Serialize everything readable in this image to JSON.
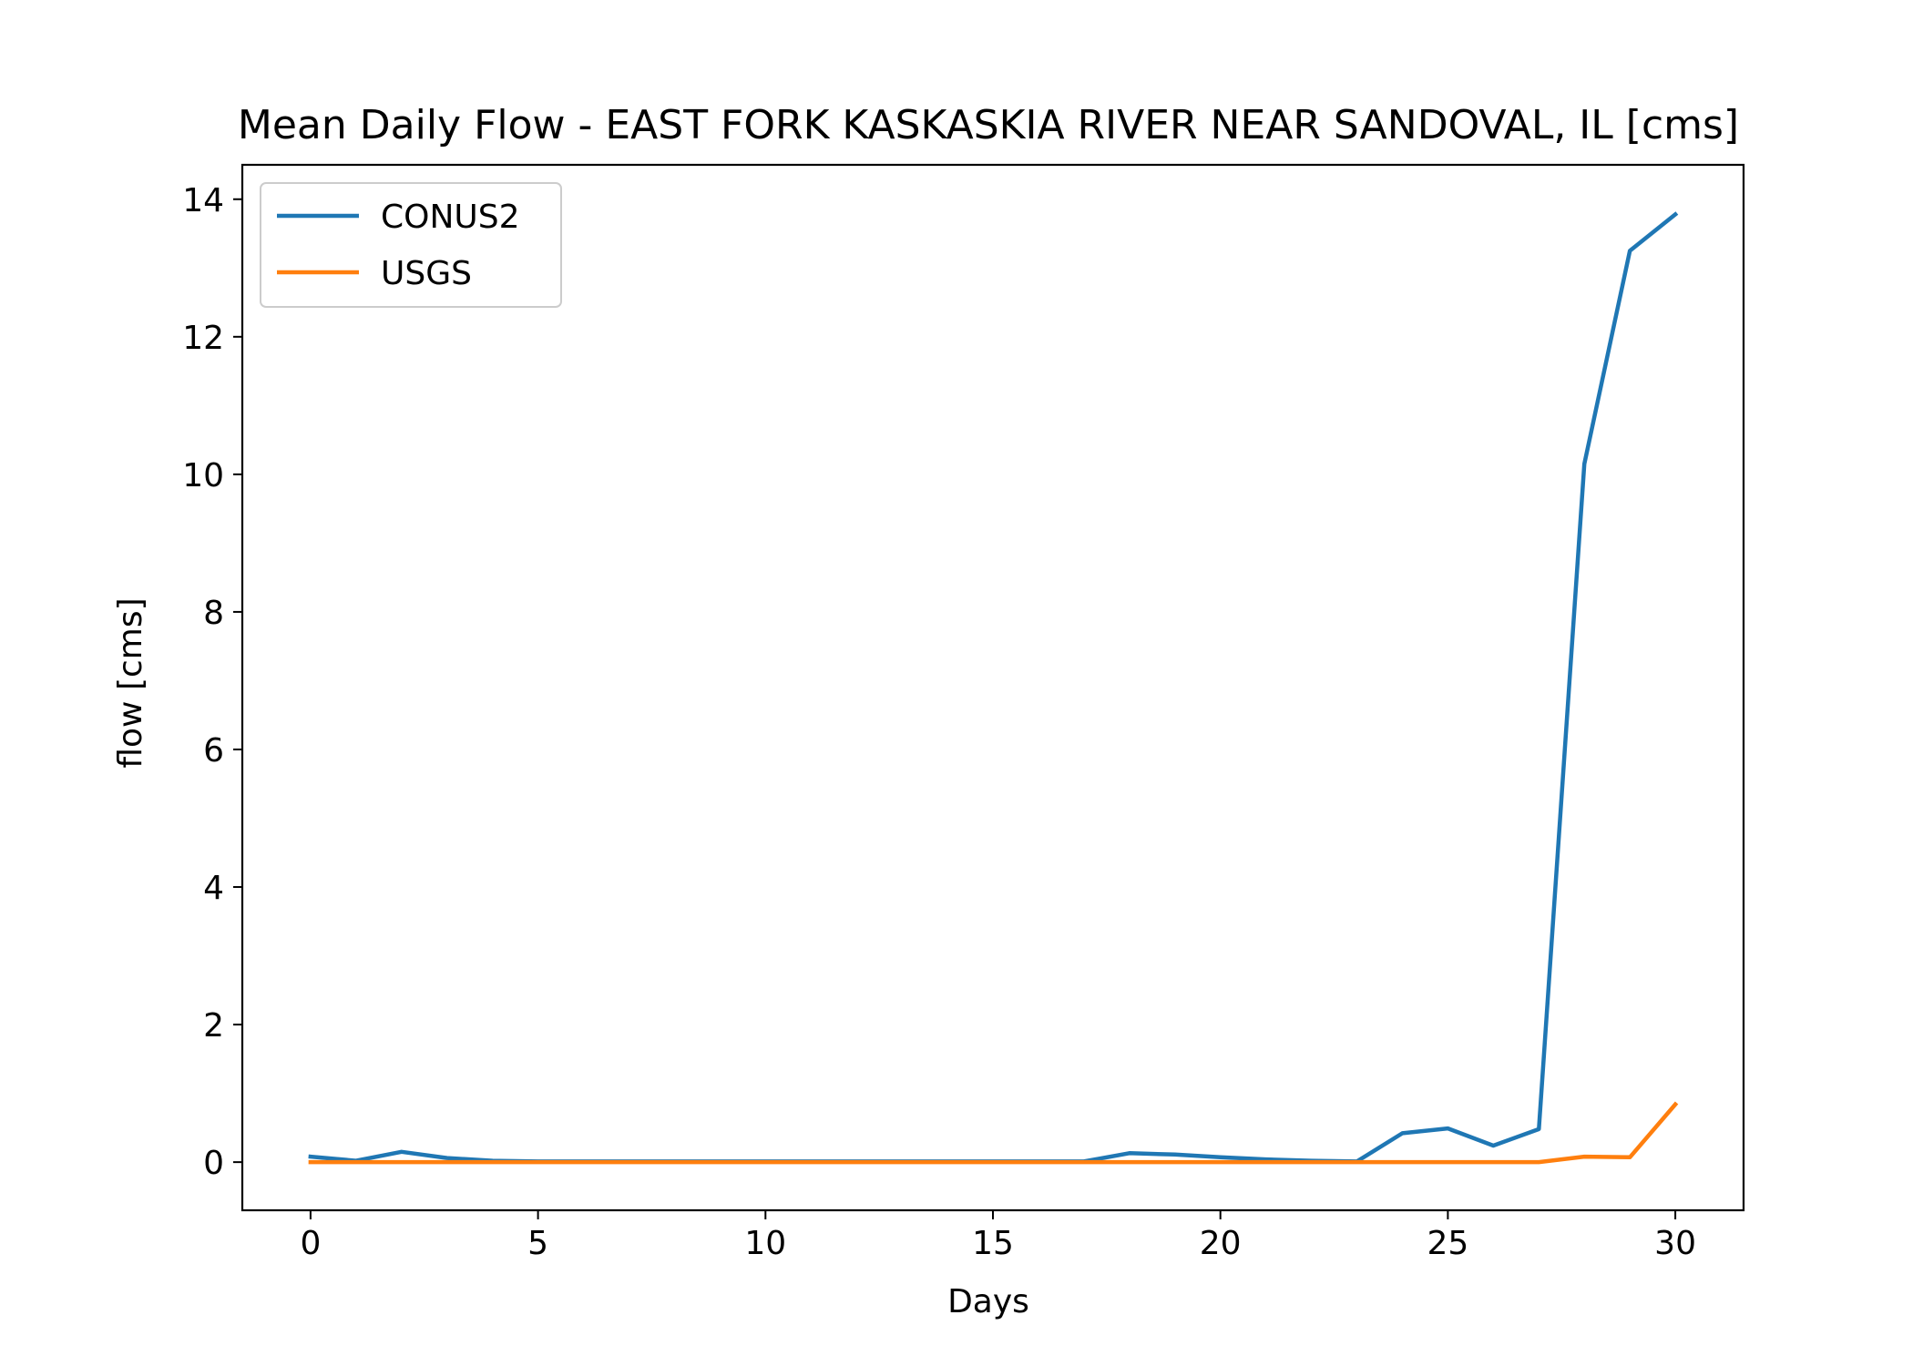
{
  "chart_data": {
    "type": "line",
    "title": "Mean Daily Flow - EAST FORK KASKASKIA RIVER NEAR SANDOVAL, IL [cms]",
    "xlabel": "Days",
    "ylabel": "flow [cms]",
    "xlim": [
      -1.5,
      31.5
    ],
    "ylim": [
      -0.7,
      14.5
    ],
    "xticks": [
      0,
      5,
      10,
      15,
      20,
      25,
      30
    ],
    "yticks": [
      0,
      2,
      4,
      6,
      8,
      10,
      12,
      14
    ],
    "grid": false,
    "legend_position": "upper-left",
    "x": [
      0,
      1,
      2,
      3,
      4,
      5,
      6,
      7,
      8,
      9,
      10,
      11,
      12,
      13,
      14,
      15,
      16,
      17,
      18,
      19,
      20,
      21,
      22,
      23,
      24,
      25,
      26,
      27,
      28,
      29,
      30
    ],
    "series": [
      {
        "name": "CONUS2",
        "color": "#1f77b4",
        "values": [
          0.08,
          0.02,
          0.15,
          0.06,
          0.02,
          0.01,
          0.01,
          0.01,
          0.01,
          0.01,
          0.01,
          0.01,
          0.01,
          0.01,
          0.01,
          0.01,
          0.01,
          0.01,
          0.13,
          0.11,
          0.07,
          0.04,
          0.02,
          0.01,
          0.42,
          0.49,
          0.24,
          0.48,
          10.15,
          13.25,
          13.78
        ]
      },
      {
        "name": "USGS",
        "color": "#ff7f0e",
        "values": [
          0,
          0,
          0,
          0,
          0,
          0,
          0,
          0,
          0,
          0,
          0,
          0,
          0,
          0,
          0,
          0,
          0,
          0,
          0,
          0,
          0,
          0,
          0,
          0,
          0,
          0,
          0,
          0,
          0.08,
          0.07,
          0.84
        ]
      }
    ]
  }
}
